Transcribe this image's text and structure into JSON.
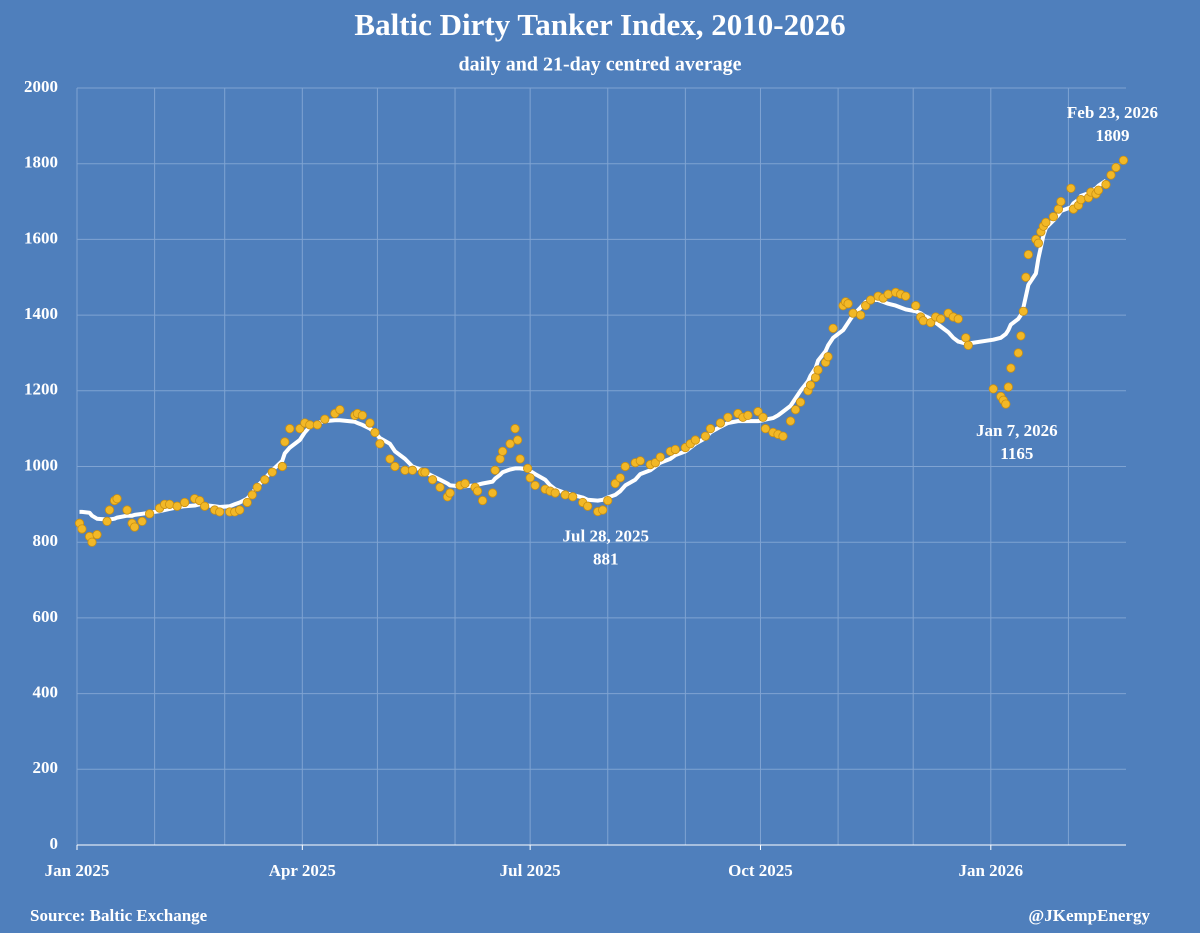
{
  "chart_data": {
    "type": "scatter-line",
    "title": "Baltic Dirty Tanker Index, 2010-2026",
    "subtitle": "daily and 21-day centred average",
    "source": "Source: Baltic Exchange",
    "credit": "@JKempEnergy",
    "x": [
      "2025-01-02",
      "2025-01-03",
      "2025-01-06",
      "2025-01-07",
      "2025-01-09",
      "2025-01-13",
      "2025-01-14",
      "2025-01-16",
      "2025-01-17",
      "2025-01-21",
      "2025-01-23",
      "2025-01-24",
      "2025-01-27",
      "2025-01-30",
      "2025-02-03",
      "2025-02-05",
      "2025-02-07",
      "2025-02-10",
      "2025-02-13",
      "2025-02-17",
      "2025-02-19",
      "2025-02-21",
      "2025-02-25",
      "2025-02-27",
      "2025-03-03",
      "2025-03-05",
      "2025-03-07",
      "2025-03-10",
      "2025-03-12",
      "2025-03-14",
      "2025-03-17",
      "2025-03-20",
      "2025-03-24",
      "2025-03-25",
      "2025-03-27",
      "2025-03-31",
      "2025-04-02",
      "2025-04-04",
      "2025-04-07",
      "2025-04-10",
      "2025-04-14",
      "2025-04-16",
      "2025-04-22",
      "2025-04-23",
      "2025-04-25",
      "2025-04-28",
      "2025-04-30",
      "2025-05-02",
      "2025-05-06",
      "2025-05-08",
      "2025-05-12",
      "2025-05-15",
      "2025-05-19",
      "2025-05-20",
      "2025-05-23",
      "2025-05-26",
      "2025-05-29",
      "2025-05-30",
      "2025-06-03",
      "2025-06-05",
      "2025-06-09",
      "2025-06-10",
      "2025-06-12",
      "2025-06-16",
      "2025-06-17",
      "2025-06-19",
      "2025-06-20",
      "2025-06-23",
      "2025-06-25",
      "2025-06-26",
      "2025-06-27",
      "2025-06-30",
      "2025-07-01",
      "2025-07-03",
      "2025-07-07",
      "2025-07-09",
      "2025-07-11",
      "2025-07-15",
      "2025-07-18",
      "2025-07-22",
      "2025-07-24",
      "2025-07-28",
      "2025-07-30",
      "2025-08-01",
      "2025-08-04",
      "2025-08-06",
      "2025-08-08",
      "2025-08-12",
      "2025-08-14",
      "2025-08-18",
      "2025-08-20",
      "2025-08-22",
      "2025-08-26",
      "2025-08-28",
      "2025-09-01",
      "2025-09-03",
      "2025-09-05",
      "2025-09-09",
      "2025-09-11",
      "2025-09-15",
      "2025-09-18",
      "2025-09-22",
      "2025-09-24",
      "2025-09-26",
      "2025-09-30",
      "2025-10-02",
      "2025-10-03",
      "2025-10-06",
      "2025-10-08",
      "2025-10-10",
      "2025-10-13",
      "2025-10-15",
      "2025-10-17",
      "2025-10-20",
      "2025-10-21",
      "2025-10-23",
      "2025-10-24",
      "2025-10-27",
      "2025-10-28",
      "2025-10-30",
      "2025-11-03",
      "2025-11-04",
      "2025-11-05",
      "2025-11-07",
      "2025-11-10",
      "2025-11-12",
      "2025-11-14",
      "2025-11-17",
      "2025-11-19",
      "2025-11-21",
      "2025-11-24",
      "2025-11-26",
      "2025-11-28",
      "2025-12-02",
      "2025-12-04",
      "2025-12-05",
      "2025-12-08",
      "2025-12-10",
      "2025-12-12",
      "2025-12-15",
      "2025-12-17",
      "2025-12-19",
      "2025-12-22",
      "2025-12-23",
      "2026-01-02",
      "2026-01-05",
      "2026-01-06",
      "2026-01-07",
      "2026-01-08",
      "2026-01-09",
      "2026-01-12",
      "2026-01-13",
      "2026-01-14",
      "2026-01-15",
      "2026-01-16",
      "2026-01-19",
      "2026-01-20",
      "2026-01-21",
      "2026-01-22",
      "2026-01-23",
      "2026-01-26",
      "2026-01-28",
      "2026-01-29",
      "2026-02-02",
      "2026-02-03",
      "2026-02-05",
      "2026-02-06",
      "2026-02-09",
      "2026-02-10",
      "2026-02-12",
      "2026-02-13",
      "2026-02-16",
      "2026-02-18",
      "2026-02-20",
      "2026-02-23"
    ],
    "series": [
      {
        "kind": "points",
        "color": "#f2b827",
        "values": [
          850,
          835,
          815,
          800,
          820,
          855,
          885,
          910,
          915,
          885,
          850,
          840,
          855,
          875,
          890,
          900,
          900,
          895,
          905,
          915,
          910,
          895,
          885,
          880,
          880,
          880,
          885,
          905,
          925,
          945,
          965,
          985,
          1000,
          1065,
          1100,
          1100,
          1115,
          1110,
          1110,
          1125,
          1140,
          1150,
          1135,
          1140,
          1135,
          1115,
          1090,
          1060,
          1020,
          1000,
          990,
          990,
          985,
          985,
          965,
          945,
          920,
          930,
          950,
          955,
          945,
          935,
          910,
          930,
          990,
          1020,
          1040,
          1060,
          1100,
          1070,
          1020,
          995,
          970,
          950,
          940,
          935,
          930,
          925,
          920,
          905,
          895,
          881,
          885,
          910,
          955,
          970,
          1000,
          1010,
          1015,
          1005,
          1010,
          1025,
          1040,
          1045,
          1050,
          1060,
          1070,
          1080,
          1100,
          1115,
          1130,
          1140,
          1130,
          1135,
          1145,
          1130,
          1100,
          1090,
          1085,
          1080,
          1120,
          1150,
          1170,
          1200,
          1215,
          1235,
          1255,
          1275,
          1290,
          1365,
          1425,
          1435,
          1430,
          1405,
          1400,
          1425,
          1440,
          1450,
          1445,
          1455,
          1460,
          1455,
          1450,
          1425,
          1395,
          1385,
          1380,
          1395,
          1390,
          1405,
          1395,
          1390,
          1340,
          1320,
          1205,
          1185,
          1175,
          1165,
          1210,
          1260,
          1300,
          1345,
          1410,
          1500,
          1560,
          1600,
          1590,
          1620,
          1635,
          1645,
          1660,
          1680,
          1700,
          1735,
          1680,
          1690,
          1705,
          1710,
          1725,
          1720,
          1730,
          1745,
          1770,
          1790,
          1809
        ]
      },
      {
        "kind": "line",
        "color": "#ffffff",
        "values": [
          880,
          880,
          878,
          870,
          862,
          860,
          860,
          862,
          865,
          870,
          870,
          872,
          875,
          878,
          882,
          885,
          888,
          892,
          895,
          897,
          900,
          898,
          895,
          893,
          895,
          900,
          905,
          915,
          930,
          948,
          968,
          990,
          1015,
          1035,
          1050,
          1070,
          1090,
          1105,
          1115,
          1120,
          1122,
          1122,
          1118,
          1115,
          1110,
          1100,
          1090,
          1075,
          1060,
          1040,
          1020,
          1000,
          990,
          985,
          975,
          965,
          955,
          950,
          948,
          948,
          950,
          952,
          955,
          960,
          968,
          978,
          985,
          992,
          995,
          995,
          995,
          992,
          988,
          980,
          965,
          950,
          940,
          930,
          925,
          918,
          912,
          910,
          912,
          918,
          925,
          935,
          950,
          965,
          980,
          990,
          1000,
          1010,
          1020,
          1030,
          1040,
          1050,
          1060,
          1075,
          1090,
          1105,
          1115,
          1120,
          1120,
          1120,
          1120,
          1122,
          1124,
          1128,
          1135,
          1145,
          1160,
          1180,
          1200,
          1225,
          1240,
          1260,
          1280,
          1305,
          1320,
          1340,
          1360,
          1370,
          1380,
          1400,
          1420,
          1435,
          1440,
          1440,
          1435,
          1430,
          1425,
          1420,
          1415,
          1410,
          1405,
          1400,
          1390,
          1380,
          1370,
          1355,
          1340,
          1330,
          1325,
          1325,
          1335,
          1340,
          1345,
          1350,
          1360,
          1375,
          1390,
          1400,
          1420,
          1450,
          1480,
          1510,
          1550,
          1580,
          1610,
          1630,
          1650,
          1665,
          1675,
          1685,
          1695,
          1705,
          1715,
          1722,
          1728,
          1735,
          1742,
          1755,
          null,
          null,
          null
        ]
      }
    ],
    "xlim": [
      "2025-01-01",
      "2026-02-24"
    ],
    "xticks": [
      {
        "value": "2025-01-01",
        "label": "Jan 2025"
      },
      {
        "value": "2025-04-01",
        "label": "Apr 2025"
      },
      {
        "value": "2025-07-01",
        "label": "Jul 2025"
      },
      {
        "value": "2025-10-01",
        "label": "Oct 2025"
      },
      {
        "value": "2026-01-01",
        "label": "Jan 2026"
      }
    ],
    "ylim": [
      0,
      2000
    ],
    "yticks": [
      0,
      200,
      400,
      600,
      800,
      1000,
      1200,
      1400,
      1600,
      1800,
      2000
    ],
    "grid": true,
    "annotations": [
      {
        "label": "Jul 28, 2025",
        "value": 881
      },
      {
        "label": "Jan 7, 2026",
        "value": 1165
      },
      {
        "label": "Feb 23, 2026",
        "value": 1809
      }
    ]
  }
}
